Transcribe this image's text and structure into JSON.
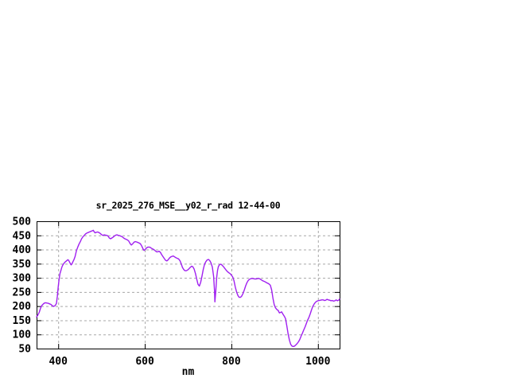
{
  "window": {
    "background": "#ffffff"
  },
  "chart_data": {
    "type": "line",
    "title": "sr_2025_276_MSE__y02_r_rad 12-44-00",
    "xlabel": "nm",
    "ylabel": "",
    "xlim": [
      350,
      1050
    ],
    "ylim": [
      50,
      500
    ],
    "xticks": [
      400,
      600,
      800,
      1000
    ],
    "yticks": [
      50,
      100,
      150,
      200,
      250,
      300,
      350,
      400,
      450,
      500
    ],
    "grid": true,
    "legend_position": "none",
    "line_color": "#a020f0",
    "grid_color": "#a8a8a8",
    "axis_color": "#000000",
    "series": [
      {
        "points": [
          [
            350,
            162
          ],
          [
            353,
            168
          ],
          [
            356,
            178
          ],
          [
            359,
            192
          ],
          [
            362,
            202
          ],
          [
            365,
            207
          ],
          [
            368,
            211
          ],
          [
            371,
            212
          ],
          [
            374,
            211
          ],
          [
            377,
            210
          ],
          [
            380,
            208
          ],
          [
            383,
            206
          ],
          [
            386,
            202
          ],
          [
            389,
            199
          ],
          [
            392,
            201
          ],
          [
            394,
            204
          ],
          [
            396,
            210
          ],
          [
            398,
            235
          ],
          [
            400,
            268
          ],
          [
            402,
            295
          ],
          [
            404,
            315
          ],
          [
            406,
            325
          ],
          [
            408,
            336
          ],
          [
            410,
            344
          ],
          [
            413,
            351
          ],
          [
            416,
            356
          ],
          [
            419,
            360
          ],
          [
            422,
            364
          ],
          [
            424,
            362
          ],
          [
            426,
            356
          ],
          [
            428,
            350
          ],
          [
            430,
            346
          ],
          [
            432,
            350
          ],
          [
            434,
            357
          ],
          [
            436,
            363
          ],
          [
            439,
            375
          ],
          [
            442,
            396
          ],
          [
            445,
            408
          ],
          [
            448,
            419
          ],
          [
            451,
            428
          ],
          [
            454,
            438
          ],
          [
            457,
            445
          ],
          [
            460,
            450
          ],
          [
            463,
            455
          ],
          [
            466,
            458
          ],
          [
            469,
            460
          ],
          [
            472,
            462
          ],
          [
            475,
            464
          ],
          [
            478,
            466
          ],
          [
            481,
            468
          ],
          [
            483,
            463
          ],
          [
            485,
            459
          ],
          [
            488,
            461
          ],
          [
            491,
            462
          ],
          [
            494,
            460
          ],
          [
            497,
            457
          ],
          [
            500,
            453
          ],
          [
            503,
            450
          ],
          [
            506,
            452
          ],
          [
            509,
            451
          ],
          [
            512,
            450
          ],
          [
            515,
            448
          ],
          [
            518,
            441
          ],
          [
            521,
            438
          ],
          [
            524,
            441
          ],
          [
            527,
            444
          ],
          [
            530,
            448
          ],
          [
            533,
            451
          ],
          [
            536,
            452
          ],
          [
            539,
            450
          ],
          [
            542,
            449
          ],
          [
            545,
            447
          ],
          [
            548,
            445
          ],
          [
            551,
            441
          ],
          [
            554,
            438
          ],
          [
            557,
            436
          ],
          [
            560,
            434
          ],
          [
            563,
            430
          ],
          [
            566,
            421
          ],
          [
            569,
            416
          ],
          [
            572,
            420
          ],
          [
            575,
            426
          ],
          [
            578,
            428
          ],
          [
            581,
            427
          ],
          [
            584,
            425
          ],
          [
            587,
            423
          ],
          [
            590,
            420
          ],
          [
            593,
            412
          ],
          [
            596,
            402
          ],
          [
            598,
            397
          ],
          [
            600,
            399
          ],
          [
            603,
            404
          ],
          [
            606,
            408
          ],
          [
            609,
            409
          ],
          [
            612,
            408
          ],
          [
            615,
            405
          ],
          [
            618,
            402
          ],
          [
            621,
            400
          ],
          [
            624,
            396
          ],
          [
            627,
            392
          ],
          [
            630,
            392
          ],
          [
            633,
            394
          ],
          [
            636,
            390
          ],
          [
            639,
            382
          ],
          [
            642,
            375
          ],
          [
            645,
            368
          ],
          [
            648,
            362
          ],
          [
            651,
            360
          ],
          [
            654,
            364
          ],
          [
            657,
            370
          ],
          [
            660,
            374
          ],
          [
            663,
            376
          ],
          [
            666,
            377
          ],
          [
            669,
            374
          ],
          [
            672,
            371
          ],
          [
            675,
            369
          ],
          [
            678,
            367
          ],
          [
            681,
            361
          ],
          [
            684,
            350
          ],
          [
            687,
            337
          ],
          [
            690,
            329
          ],
          [
            693,
            325
          ],
          [
            696,
            325
          ],
          [
            699,
            328
          ],
          [
            702,
            332
          ],
          [
            705,
            337
          ],
          [
            708,
            341
          ],
          [
            711,
            339
          ],
          [
            714,
            331
          ],
          [
            717,
            315
          ],
          [
            720,
            295
          ],
          [
            723,
            277
          ],
          [
            726,
            271
          ],
          [
            729,
            284
          ],
          [
            732,
            305
          ],
          [
            735,
            330
          ],
          [
            738,
            348
          ],
          [
            741,
            357
          ],
          [
            744,
            363
          ],
          [
            747,
            365
          ],
          [
            750,
            361
          ],
          [
            753,
            353
          ],
          [
            756,
            338
          ],
          [
            759,
            305
          ],
          [
            761,
            255
          ],
          [
            762,
            215
          ],
          [
            764,
            252
          ],
          [
            766,
            300
          ],
          [
            768,
            326
          ],
          [
            770,
            340
          ],
          [
            773,
            347
          ],
          [
            776,
            348
          ],
          [
            779,
            344
          ],
          [
            782,
            339
          ],
          [
            785,
            333
          ],
          [
            788,
            327
          ],
          [
            791,
            322
          ],
          [
            794,
            318
          ],
          [
            797,
            315
          ],
          [
            800,
            310
          ],
          [
            803,
            303
          ],
          [
            806,
            290
          ],
          [
            809,
            268
          ],
          [
            812,
            250
          ],
          [
            815,
            238
          ],
          [
            818,
            231
          ],
          [
            821,
            231
          ],
          [
            824,
            236
          ],
          [
            827,
            245
          ],
          [
            830,
            258
          ],
          [
            833,
            272
          ],
          [
            836,
            283
          ],
          [
            839,
            291
          ],
          [
            842,
            295
          ],
          [
            845,
            297
          ],
          [
            848,
            298
          ],
          [
            851,
            297
          ],
          [
            854,
            296
          ],
          [
            857,
            296
          ],
          [
            860,
            297
          ],
          [
            863,
            298
          ],
          [
            866,
            296
          ],
          [
            869,
            293
          ],
          [
            872,
            290
          ],
          [
            875,
            288
          ],
          [
            878,
            286
          ],
          [
            881,
            283
          ],
          [
            884,
            281
          ],
          [
            887,
            278
          ],
          [
            890,
            274
          ],
          [
            893,
            258
          ],
          [
            896,
            228
          ],
          [
            899,
            205
          ],
          [
            902,
            194
          ],
          [
            905,
            188
          ],
          [
            908,
            185
          ],
          [
            911,
            176
          ],
          [
            914,
            178
          ],
          [
            916,
            180
          ],
          [
            919,
            172
          ],
          [
            922,
            165
          ],
          [
            925,
            156
          ],
          [
            928,
            131
          ],
          [
            931,
            103
          ],
          [
            934,
            80
          ],
          [
            937,
            65
          ],
          [
            940,
            59
          ],
          [
            943,
            57
          ],
          [
            946,
            59
          ],
          [
            949,
            63
          ],
          [
            952,
            68
          ],
          [
            955,
            74
          ],
          [
            958,
            82
          ],
          [
            961,
            94
          ],
          [
            964,
            104
          ],
          [
            967,
            115
          ],
          [
            970,
            126
          ],
          [
            973,
            138
          ],
          [
            976,
            150
          ],
          [
            979,
            160
          ],
          [
            982,
            172
          ],
          [
            985,
            186
          ],
          [
            988,
            199
          ],
          [
            991,
            207
          ],
          [
            994,
            213
          ],
          [
            997,
            217
          ],
          [
            1000,
            219
          ],
          [
            1003,
            220
          ],
          [
            1006,
            221
          ],
          [
            1009,
            222
          ],
          [
            1012,
            222
          ],
          [
            1015,
            220
          ],
          [
            1018,
            221
          ],
          [
            1021,
            224
          ],
          [
            1024,
            222
          ],
          [
            1027,
            221
          ],
          [
            1030,
            219
          ],
          [
            1033,
            220
          ],
          [
            1036,
            218
          ],
          [
            1039,
            219
          ],
          [
            1042,
            222
          ],
          [
            1045,
            219
          ],
          [
            1048,
            221
          ],
          [
            1050,
            225
          ]
        ]
      }
    ]
  }
}
